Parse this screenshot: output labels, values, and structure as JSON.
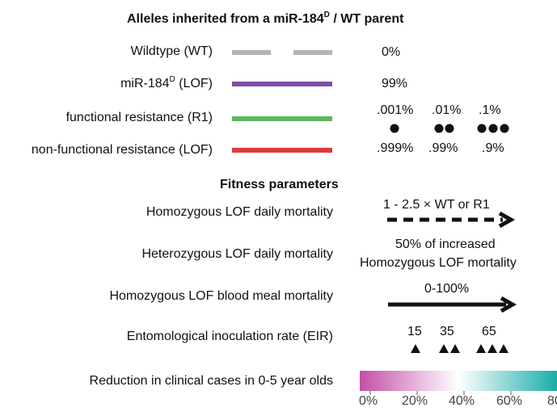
{
  "alleles": {
    "title_prefix": "Alleles inherited from a miR-184",
    "title_sup": "D",
    "title_suffix": " / WT parent",
    "rows": [
      {
        "label": "Wildtype (WT)",
        "value": "0%",
        "color": "#b5b5b5"
      },
      {
        "label_prefix": "miR-184",
        "label_sup": "D",
        "label_suffix": " (LOF)",
        "value": "99%",
        "color": "#7b4fa6"
      },
      {
        "label": "functional resistance (R1)",
        "color": "#5cb85c"
      },
      {
        "label": "non-functional resistance (LOF)",
        "color": "#e03a3a"
      }
    ],
    "resistance_top": [
      ".001%",
      ".01%",
      ".1%"
    ],
    "resistance_bottom": [
      ".999%",
      ".99%",
      ".9%"
    ],
    "resistance_dot_counts": [
      1,
      2,
      3
    ]
  },
  "fitness": {
    "title": "Fitness parameters",
    "rows": [
      {
        "label": "Homozygous LOF daily mortality",
        "value": "1 - 2.5 × WT or R1"
      },
      {
        "label": "Heterozygous LOF daily mortality",
        "value_line1": "50% of increased",
        "value_line2": "Homozygous LOF mortality"
      },
      {
        "label": "Homozygous LOF blood meal mortality",
        "value": "0-100%"
      },
      {
        "label": "Entomological inoculation rate (EIR)",
        "values": [
          "15",
          "35",
          "65"
        ],
        "triangle_counts": [
          1,
          2,
          3
        ]
      }
    ],
    "colorbar": {
      "label": "Reduction in clinical cases in  0-5 year olds",
      "ticks": [
        "0%",
        "20%",
        "40%",
        "60%",
        "80"
      ],
      "color_start": "#c44fa8",
      "color_mid": "#ffffff",
      "color_end": "#1aada8"
    }
  }
}
